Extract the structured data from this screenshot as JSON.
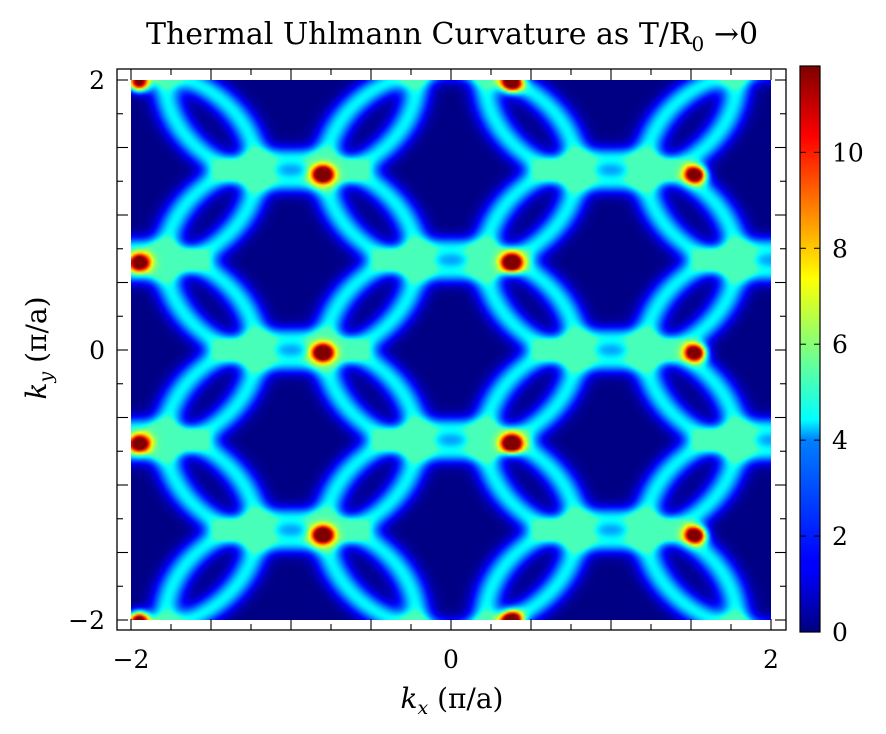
{
  "chart_data": {
    "type": "heatmap",
    "title": "Thermal Uhlmann Curvature as T/R",
    "title_sub": "0",
    "title_suffix": " →0",
    "xlabel_var": "k",
    "xlabel_sub": "x",
    "xlabel_unit": " (π/a)",
    "ylabel_var": "k",
    "ylabel_sub": "y",
    "ylabel_unit": " (π/a)",
    "x_range": [
      -2,
      2
    ],
    "y_range": [
      -2,
      2
    ],
    "x_ticks": [
      -2,
      0,
      2
    ],
    "x_tick_labels": [
      "−2",
      "0",
      "2"
    ],
    "y_ticks": [
      -2,
      0,
      2
    ],
    "y_tick_labels": [
      "−2",
      "0",
      "2"
    ],
    "colorbar": {
      "range": [
        0,
        11.8
      ],
      "ticks": [
        0,
        2,
        4,
        6,
        8,
        10
      ],
      "tick_labels": [
        "0",
        "2",
        "4",
        "6",
        "8",
        "10"
      ],
      "colormap": "jet"
    },
    "lattice": {
      "rings_x": [
        -2.0,
        0.0,
        2.0
      ],
      "rings_y": [
        -1.333,
        0.0,
        1.333
      ],
      "offset_x": [
        -1.0,
        1.0
      ],
      "offset_y": [
        -2.0,
        -0.667,
        0.667,
        2.0
      ],
      "ring_radius": 0.75,
      "ring_peak": 4.3
    },
    "peaks": [
      {
        "x": -1.95,
        "y": 1.98,
        "value": 11.8
      },
      {
        "x": 0.38,
        "y": 1.98,
        "value": 11.8
      },
      {
        "x": -0.8,
        "y": 1.3,
        "value": 11.8
      },
      {
        "x": 1.53,
        "y": 1.3,
        "value": 11.8
      },
      {
        "x": -1.95,
        "y": 0.65,
        "value": 11.8
      },
      {
        "x": 0.38,
        "y": 0.65,
        "value": 11.8
      },
      {
        "x": -0.8,
        "y": -0.02,
        "value": 11.8
      },
      {
        "x": 1.53,
        "y": -0.02,
        "value": 11.8
      },
      {
        "x": -1.95,
        "y": -0.69,
        "value": 11.8
      },
      {
        "x": 0.38,
        "y": -0.69,
        "value": 11.8
      },
      {
        "x": -0.8,
        "y": -1.37,
        "value": 11.8
      },
      {
        "x": 1.53,
        "y": -1.37,
        "value": 11.8
      },
      {
        "x": -1.95,
        "y": -2.0,
        "value": 11.8
      },
      {
        "x": 0.38,
        "y": -2.0,
        "value": 11.8
      }
    ]
  }
}
